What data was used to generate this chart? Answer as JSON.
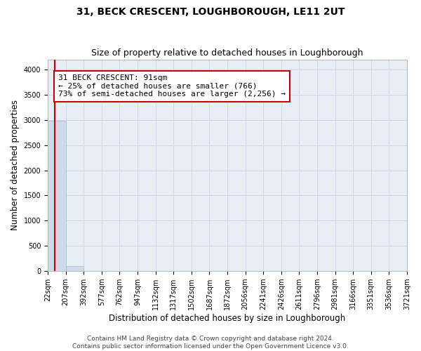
{
  "title": "31, BECK CRESCENT, LOUGHBOROUGH, LE11 2UT",
  "subtitle": "Size of property relative to detached houses in Loughborough",
  "xlabel": "Distribution of detached houses by size in Loughborough",
  "ylabel": "Number of detached properties",
  "footer_line1": "Contains HM Land Registry data © Crown copyright and database right 2024.",
  "footer_line2": "Contains public sector information licensed under the Open Government Licence v3.0.",
  "bar_edges": [
    22,
    207,
    392,
    577,
    762,
    947,
    1132,
    1317,
    1502,
    1687,
    1872,
    2056,
    2241,
    2426,
    2611,
    2796,
    2981,
    3166,
    3351,
    3536,
    3721
  ],
  "bar_labels": [
    "22sqm",
    "207sqm",
    "392sqm",
    "577sqm",
    "762sqm",
    "947sqm",
    "1132sqm",
    "1317sqm",
    "1502sqm",
    "1687sqm",
    "1872sqm",
    "2056sqm",
    "2241sqm",
    "2426sqm",
    "2611sqm",
    "2796sqm",
    "2981sqm",
    "3166sqm",
    "3351sqm",
    "3536sqm",
    "3721sqm"
  ],
  "bar_heights": [
    2980,
    100,
    5,
    2,
    1,
    1,
    1,
    1,
    1,
    1,
    1,
    1,
    1,
    1,
    1,
    1,
    1,
    1,
    1,
    1
  ],
  "bar_color": "#ccdcec",
  "bar_edgecolor": "#aabccc",
  "vline_x": 91,
  "vline_color": "#cc0000",
  "annotation_line1": "31 BECK CRESCENT: 91sqm",
  "annotation_line2": "← 25% of detached houses are smaller (766)",
  "annotation_line3": "73% of semi-detached houses are larger (2,256) →",
  "annotation_box_facecolor": "#ffffff",
  "annotation_box_edgecolor": "#cc0000",
  "ylim": [
    0,
    4200
  ],
  "yticks": [
    0,
    500,
    1000,
    1500,
    2000,
    2500,
    3000,
    3500,
    4000
  ],
  "grid_color": "#d0d8e8",
  "bg_color": "#e8eef6",
  "title_fontsize": 10,
  "subtitle_fontsize": 9,
  "xlabel_fontsize": 8.5,
  "ylabel_fontsize": 8.5,
  "tick_fontsize": 7,
  "annotation_fontsize": 8,
  "footer_fontsize": 6.5,
  "footer_color": "#444444"
}
